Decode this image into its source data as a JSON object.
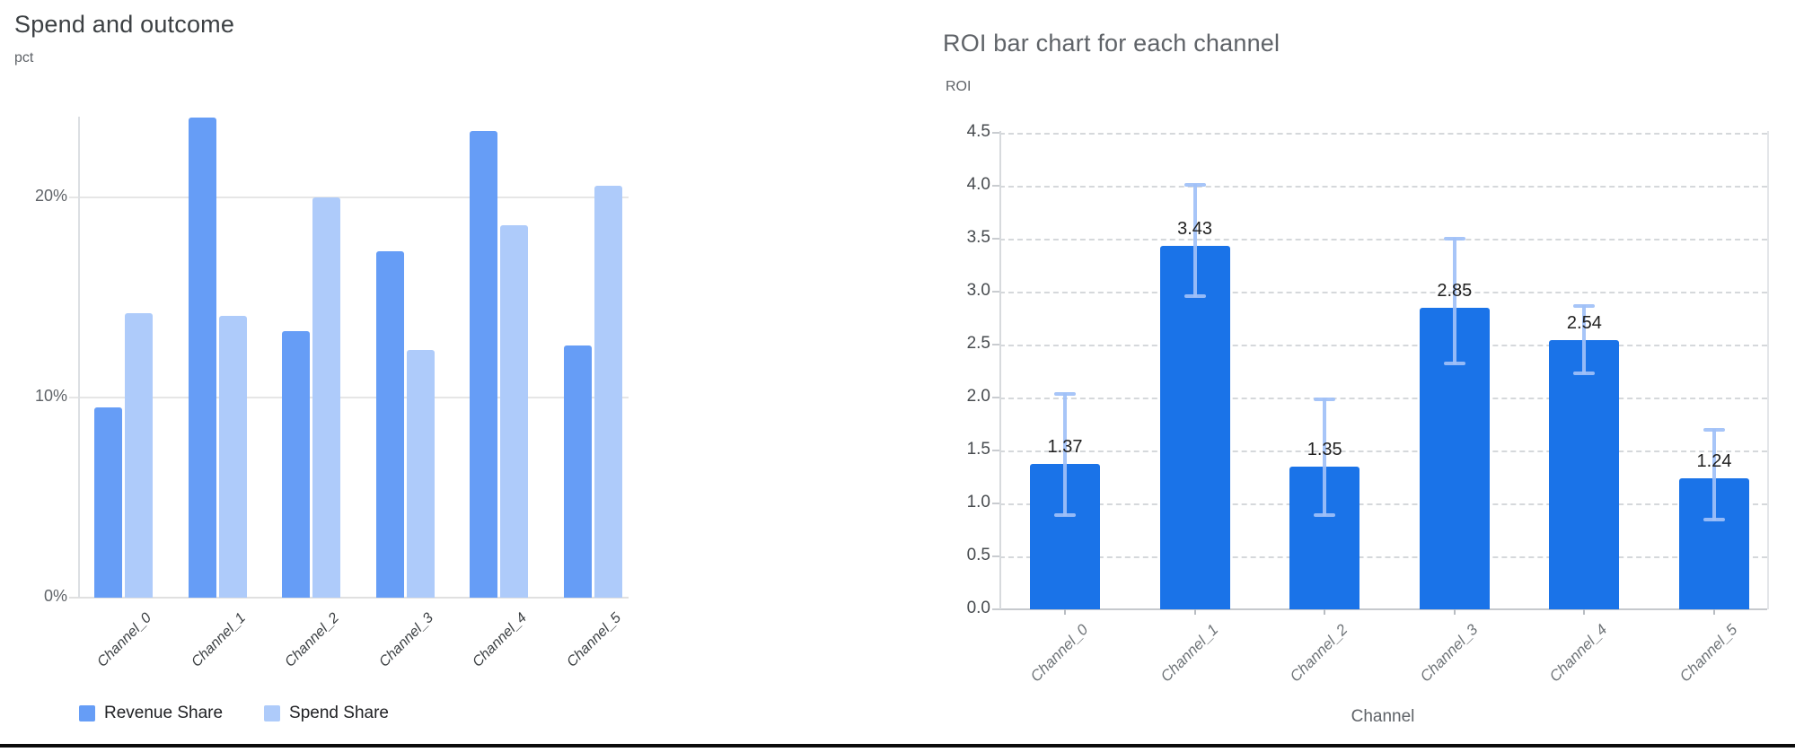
{
  "page": {
    "background": "#ffffff",
    "bottom_rule_color": "#0b0b0b"
  },
  "chart_data": [
    {
      "type": "bar",
      "title": "Spend and outcome",
      "ylabel": "pct",
      "xlabel": "",
      "categories": [
        "Channel_0",
        "Channel_1",
        "Channel_2",
        "Channel_3",
        "Channel_4",
        "Channel_5"
      ],
      "series": [
        {
          "name": "Revenue Share",
          "color": "#669df6",
          "values": [
            9.5,
            24.0,
            13.3,
            17.3,
            23.3,
            12.6
          ]
        },
        {
          "name": "Spend Share",
          "color": "#aecbfa",
          "values": [
            14.2,
            14.1,
            20.0,
            12.4,
            18.6,
            20.6
          ]
        }
      ],
      "y_ticks": [
        {
          "v": 0,
          "label": "0%"
        },
        {
          "v": 10,
          "label": "10%"
        },
        {
          "v": 20,
          "label": "20%"
        }
      ],
      "ylim": [
        0,
        25.3
      ],
      "unit": "percent",
      "grid": "horizontal-solid",
      "legend_position": "bottom"
    },
    {
      "type": "bar",
      "title": "ROI bar chart for each channel",
      "ylabel": "ROI",
      "xlabel": "Channel",
      "categories": [
        "Channel_0",
        "Channel_1",
        "Channel_2",
        "Channel_3",
        "Channel_4",
        "Channel_5"
      ],
      "values": [
        1.37,
        3.43,
        1.35,
        2.85,
        2.54,
        1.24
      ],
      "bar_labels": [
        "1.37",
        "3.43",
        "1.35",
        "2.85",
        "2.54",
        "1.24"
      ],
      "error_low": [
        0.88,
        2.95,
        0.88,
        2.31,
        2.22,
        0.84
      ],
      "error_high": [
        2.04,
        4.02,
        1.99,
        3.51,
        2.87,
        1.7
      ],
      "bar_color": "#1a73e8",
      "error_bar_color": "#9fc0f7",
      "y_ticks": [
        {
          "v": 0.0,
          "label": "0.0"
        },
        {
          "v": 0.5,
          "label": "0.5"
        },
        {
          "v": 1.0,
          "label": "1.0"
        },
        {
          "v": 1.5,
          "label": "1.5"
        },
        {
          "v": 2.0,
          "label": "2.0"
        },
        {
          "v": 2.5,
          "label": "2.5"
        },
        {
          "v": 3.0,
          "label": "3.0"
        },
        {
          "v": 3.5,
          "label": "3.5"
        },
        {
          "v": 4.0,
          "label": "4.0"
        },
        {
          "v": 4.5,
          "label": "4.5"
        }
      ],
      "ylim": [
        0,
        4.52
      ],
      "grid": "horizontal-dashed",
      "legend_position": "none"
    }
  ],
  "colors": {
    "left_title": "#3c4043",
    "right_title": "#5f6368",
    "unit_label": "#5f6368",
    "left_ytick": "#5f6368",
    "right_ytick": "#474b4f",
    "left_xlabel": "#3c4043",
    "right_xlabel": "#6f7478",
    "grid_solid": "#e6e6e6",
    "grid_dashed": "#d5d8db",
    "axis_line": "#dcdfe3",
    "baseline_right": "#c6c9cd",
    "tick_mark": "#9aa0a6"
  }
}
